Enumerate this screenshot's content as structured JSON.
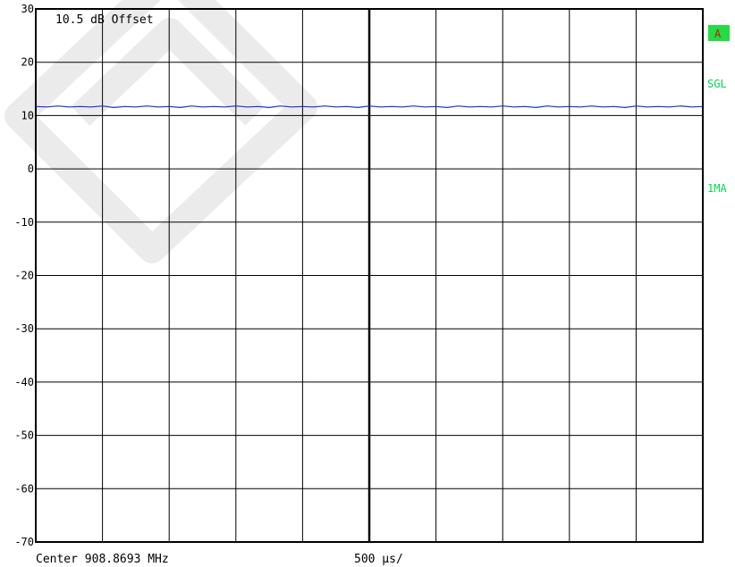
{
  "annotations": {
    "offset": "10.5 dB Offset",
    "center": "Center 908.8693 MHz",
    "span": "500 µs/"
  },
  "side_labels": {
    "trace_a": "A",
    "sweep_mode": "SGL",
    "detector": "1MA"
  },
  "colors": {
    "trace": "#1a2fd6",
    "status_green": "#00d84a",
    "badge_bg": "#22dd44",
    "badge_text": "#d01010",
    "grid": "#000000",
    "watermark": "#ebebeb"
  },
  "chart_data": {
    "type": "line",
    "title": "",
    "xlabel": "",
    "ylabel": "",
    "ylim": [
      -70,
      30
    ],
    "yticks": [
      30,
      20,
      10,
      0,
      -10,
      -20,
      -30,
      -40,
      -50,
      -60,
      -70
    ],
    "ytick_labels": [
      "30",
      "20",
      "10",
      "0",
      "-10",
      "-20",
      "-30",
      "-40",
      "-50",
      "-60",
      "-70"
    ],
    "x_divisions": 10,
    "grid": true,
    "series": [
      {
        "values": [
          11.7,
          11.6,
          11.8,
          11.6,
          11.7,
          11.6,
          11.8,
          11.5,
          11.7,
          11.6,
          11.8,
          11.6,
          11.7,
          11.5,
          11.8,
          11.6,
          11.7,
          11.6,
          11.8,
          11.6,
          11.7,
          11.5,
          11.8,
          11.6,
          11.7,
          11.6,
          11.8,
          11.6,
          11.7,
          11.5,
          11.8,
          11.6,
          11.7,
          11.6,
          11.8,
          11.6,
          11.7,
          11.5,
          11.8,
          11.6,
          11.7,
          11.6,
          11.8,
          11.6,
          11.7,
          11.5,
          11.8,
          11.6,
          11.7,
          11.6,
          11.8,
          11.6,
          11.7,
          11.5,
          11.8,
          11.6,
          11.7,
          11.6,
          11.8,
          11.6,
          11.7
        ]
      }
    ]
  }
}
